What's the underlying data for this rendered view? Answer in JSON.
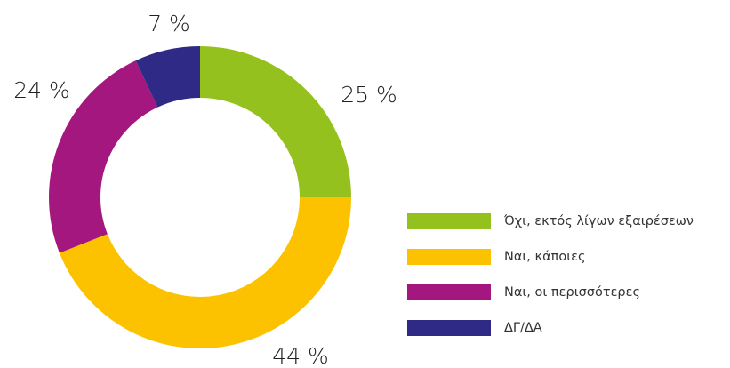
{
  "chart_data": {
    "type": "donut",
    "categories": [
      "Όχι, εκτός λίγων εξαιρέσεων",
      "Ναι, κάποιες",
      "Ναι, οι περισσότερες",
      "ΔΓ/ΔΑ"
    ],
    "values": [
      25,
      44,
      24,
      7
    ],
    "value_labels": [
      "25 %",
      "44 %",
      "24 %",
      "7 %"
    ],
    "colors": [
      "#95c11f",
      "#fcc200",
      "#a3177f",
      "#2e2a86"
    ]
  }
}
